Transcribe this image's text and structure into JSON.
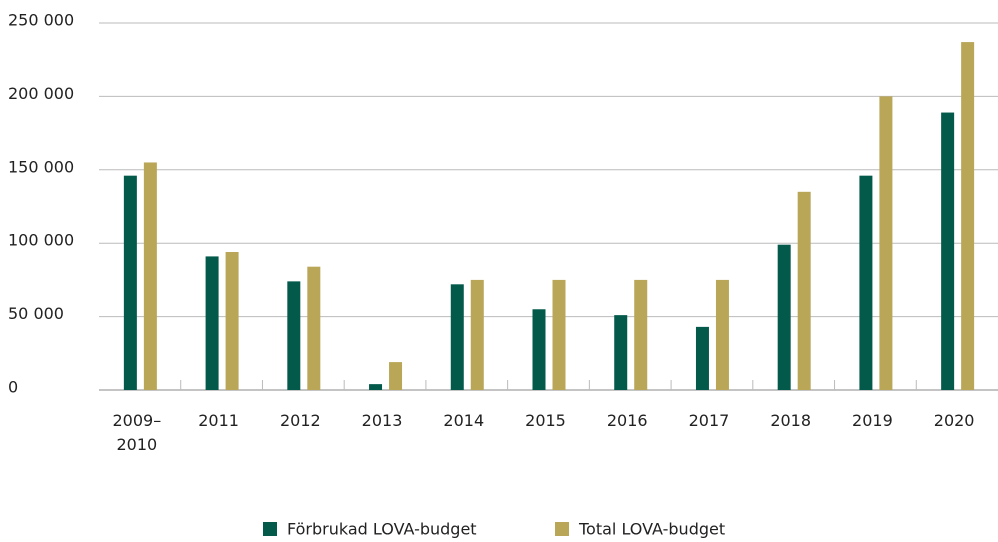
{
  "chart_data": {
    "type": "bar",
    "categories": [
      "2009–2010",
      "2011",
      "2012",
      "2013",
      "2014",
      "2015",
      "2016",
      "2017",
      "2018",
      "2019",
      "2020"
    ],
    "series": [
      {
        "name": "Förbrukad LOVA-budget",
        "color": "#035a4b",
        "values": [
          146000,
          91000,
          74000,
          4000,
          72000,
          55000,
          51000,
          43000,
          99000,
          146000,
          189000
        ]
      },
      {
        "name": "Total LOVA-budget",
        "color": "#b9a657",
        "values": [
          155000,
          94000,
          84000,
          19000,
          75000,
          75000,
          75000,
          75000,
          135000,
          200000,
          237000
        ]
      }
    ],
    "ylim": [
      0,
      250000
    ],
    "yticks": [
      0,
      {
        "value": 50000,
        "label": "50 000"
      },
      {
        "value": 100000,
        "label": "100 000"
      },
      {
        "value": 150000,
        "label": "150 000"
      },
      {
        "value": 200000,
        "label": "200 000"
      },
      {
        "value": 250000,
        "label": "250 000"
      }
    ],
    "grid": true,
    "legend": "bottom"
  }
}
